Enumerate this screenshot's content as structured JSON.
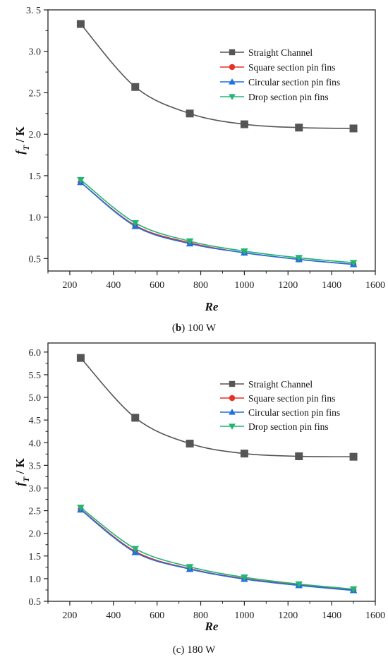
{
  "chart_data": [
    {
      "type": "line",
      "caption_label": "b",
      "caption_text": " 100 W",
      "xlabel": "Re",
      "ylabel_main": "f",
      "ylabel_sub": "T",
      "ylabel_unit": " / K",
      "xlim": [
        100,
        1600
      ],
      "ylim": [
        0.35,
        3.5
      ],
      "xticks": [
        200,
        400,
        600,
        800,
        1000,
        1200,
        1400,
        1600
      ],
      "xtick_labels": [
        "200",
        "400",
        "600",
        "800",
        "1000",
        "1200",
        "1400",
        "1600"
      ],
      "yticks": [
        0.5,
        1.0,
        1.5,
        2.0,
        2.5,
        3.0,
        3.5
      ],
      "ytick_labels": [
        "0.5",
        "1.0",
        "1.5",
        "2.0",
        "2.5",
        "3.0",
        "3. 5"
      ],
      "legend_position": "top-right",
      "x": [
        250,
        500,
        750,
        1000,
        1250,
        1500
      ],
      "series": [
        {
          "name": "Straight Channel",
          "marker": "square",
          "color": "#555555",
          "values": [
            3.33,
            2.57,
            2.25,
            2.12,
            2.08,
            2.07
          ]
        },
        {
          "name": "Square section pin fins",
          "marker": "circle",
          "color": "#e8302a",
          "values": [
            1.42,
            0.9,
            0.69,
            0.57,
            0.49,
            0.43
          ]
        },
        {
          "name": "Circular section pin fins",
          "marker": "triangle-up",
          "color": "#1f6fe0",
          "values": [
            1.42,
            0.89,
            0.68,
            0.57,
            0.49,
            0.43
          ]
        },
        {
          "name": "Drop section pin fins",
          "marker": "triangle-down",
          "color": "#22b573",
          "values": [
            1.45,
            0.93,
            0.71,
            0.59,
            0.51,
            0.45
          ]
        }
      ]
    },
    {
      "type": "line",
      "caption_label": "",
      "caption_text": "(c) 180 W",
      "xlabel": "Re",
      "ylabel_main": "f",
      "ylabel_sub": "T",
      "ylabel_unit": " / K",
      "xlim": [
        100,
        1600
      ],
      "ylim": [
        0.5,
        6.2
      ],
      "xticks": [
        200,
        400,
        600,
        800,
        1000,
        1200,
        1400,
        1600
      ],
      "xtick_labels": [
        "200",
        "400",
        "600",
        "800",
        "1000",
        "1200",
        "1400",
        "1600"
      ],
      "yticks": [
        0.5,
        1.0,
        1.5,
        2.0,
        2.5,
        3.0,
        3.5,
        4.0,
        4.5,
        5.0,
        5.5,
        6.0
      ],
      "ytick_labels": [
        "0.5",
        "1.0",
        "1.5",
        "2.0",
        "2.5",
        "3.0",
        "3.5",
        "4.0",
        "4.5",
        "5.0",
        "5.5",
        "6.0"
      ],
      "legend_position": "top-right",
      "x": [
        250,
        500,
        750,
        1000,
        1250,
        1500
      ],
      "series": [
        {
          "name": "Straight Channel",
          "marker": "square",
          "color": "#555555",
          "values": [
            5.87,
            4.55,
            3.98,
            3.76,
            3.7,
            3.69
          ]
        },
        {
          "name": "Square section pin fins",
          "marker": "circle",
          "color": "#e8302a",
          "values": [
            2.53,
            1.6,
            1.22,
            1.0,
            0.86,
            0.75
          ]
        },
        {
          "name": "Circular section pin fins",
          "marker": "triangle-up",
          "color": "#1f6fe0",
          "values": [
            2.52,
            1.58,
            1.21,
            0.99,
            0.85,
            0.74
          ]
        },
        {
          "name": "Drop section pin fins",
          "marker": "triangle-down",
          "color": "#22b573",
          "values": [
            2.57,
            1.66,
            1.26,
            1.03,
            0.88,
            0.77
          ]
        }
      ]
    }
  ]
}
